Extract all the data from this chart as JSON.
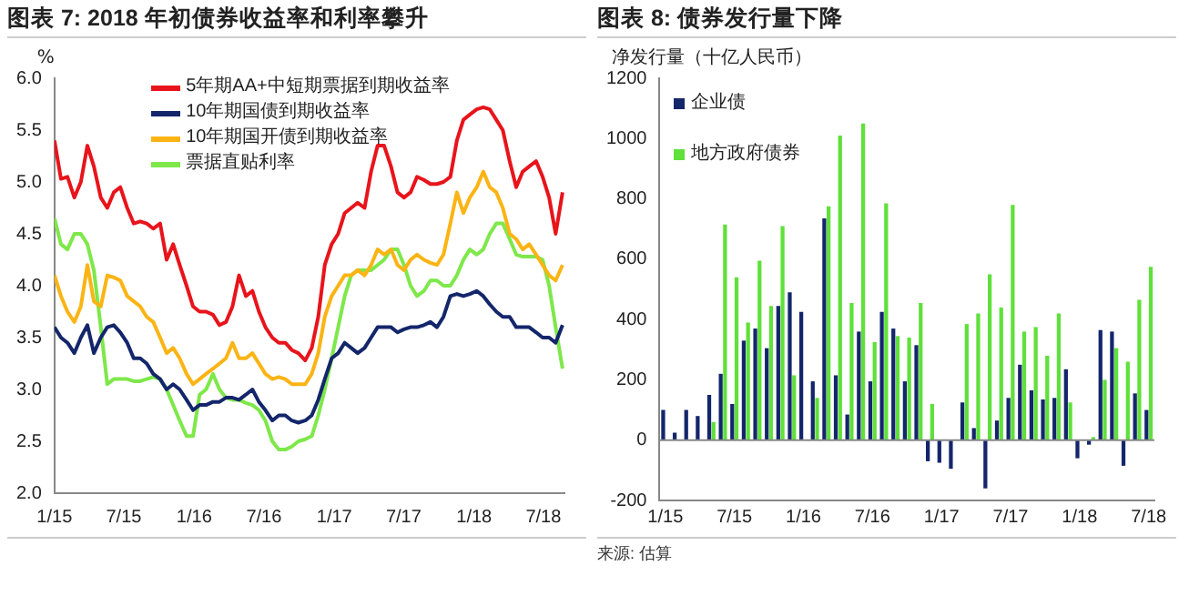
{
  "chart_data": [
    {
      "type": "line",
      "title": "图表 7: 2018 年初债券收益率和利率攀升",
      "ylabel": "%",
      "legend": "top right",
      "marker": "none",
      "line_style": "solid",
      "grid": false,
      "x": [
        "2015-01-01",
        "2015-01-18",
        "2015-02-04",
        "2015-02-22",
        "2015-03-11",
        "2015-03-28",
        "2015-04-14",
        "2015-05-02",
        "2015-05-19",
        "2015-06-05",
        "2015-06-22",
        "2015-07-10",
        "2015-07-27",
        "2015-08-13",
        "2015-08-30",
        "2015-09-16",
        "2015-10-04",
        "2015-10-21",
        "2015-11-07",
        "2015-11-24",
        "2015-12-12",
        "2015-12-29",
        "2016-01-15",
        "2016-02-01",
        "2016-02-19",
        "2016-03-07",
        "2016-03-24",
        "2016-04-10",
        "2016-04-27",
        "2016-05-15",
        "2016-06-01",
        "2016-06-18",
        "2016-07-05",
        "2016-07-23",
        "2016-08-09",
        "2016-08-26",
        "2016-09-12",
        "2016-09-29",
        "2016-10-17",
        "2016-11-03",
        "2016-11-20",
        "2016-12-07",
        "2016-12-25",
        "2017-01-11",
        "2017-01-28",
        "2017-02-14",
        "2017-03-03",
        "2017-03-21",
        "2017-04-07",
        "2017-04-24",
        "2017-05-11",
        "2017-05-29",
        "2017-06-15",
        "2017-07-02",
        "2017-07-19",
        "2017-08-05",
        "2017-08-23",
        "2017-09-09",
        "2017-09-26",
        "2017-10-13",
        "2017-10-31",
        "2017-11-17",
        "2017-12-04",
        "2017-12-21",
        "2018-01-08",
        "2018-01-25",
        "2018-02-11",
        "2018-02-28",
        "2018-03-17",
        "2018-04-04",
        "2018-04-21",
        "2018-05-08",
        "2018-05-25",
        "2018-06-12",
        "2018-06-29",
        "2018-07-16",
        "2018-08-02",
        "2018-08-20"
      ],
      "xlim": [
        "2015-01-01",
        "2018-08-25"
      ],
      "xticks": [
        {
          "value": "2015-01-01",
          "label": "1/15"
        },
        {
          "value": "2015-07-01",
          "label": "7/15"
        },
        {
          "value": "2016-01-01",
          "label": "1/16"
        },
        {
          "value": "2016-07-01",
          "label": "7/16"
        },
        {
          "value": "2017-01-01",
          "label": "1/17"
        },
        {
          "value": "2017-07-01",
          "label": "7/17"
        },
        {
          "value": "2018-01-01",
          "label": "1/18"
        },
        {
          "value": "2018-07-01",
          "label": "7/18"
        }
      ],
      "ylim": [
        2.0,
        6.0
      ],
      "yticks": [
        {
          "value": 2.0,
          "label": "2.0"
        },
        {
          "value": 2.5,
          "label": "2.5"
        },
        {
          "value": 3.0,
          "label": "3.0"
        },
        {
          "value": 3.5,
          "label": "3.5"
        },
        {
          "value": 4.0,
          "label": "4.0"
        },
        {
          "value": 4.5,
          "label": "4.5"
        },
        {
          "value": 5.0,
          "label": "5.0"
        },
        {
          "value": 5.5,
          "label": "5.5"
        },
        {
          "value": 6.0,
          "label": "6.0"
        }
      ],
      "series": [
        {
          "name": "5年期AA+中短期票据到期收益率",
          "color": "#e8141b",
          "values": [
            5.4,
            5.03,
            5.05,
            4.85,
            5.0,
            5.35,
            5.15,
            4.85,
            4.75,
            4.9,
            4.95,
            4.75,
            4.6,
            4.62,
            4.6,
            4.55,
            4.6,
            4.25,
            4.4,
            4.2,
            4.0,
            3.8,
            3.75,
            3.75,
            3.72,
            3.62,
            3.65,
            3.8,
            4.1,
            3.9,
            3.95,
            3.75,
            3.6,
            3.5,
            3.45,
            3.45,
            3.38,
            3.35,
            3.28,
            3.4,
            3.7,
            4.2,
            4.4,
            4.5,
            4.7,
            4.75,
            4.8,
            4.75,
            5.1,
            5.35,
            5.35,
            5.15,
            4.9,
            4.85,
            4.9,
            5.05,
            5.02,
            4.98,
            4.98,
            5.0,
            5.05,
            5.4,
            5.6,
            5.65,
            5.7,
            5.72,
            5.7,
            5.6,
            5.5,
            5.2,
            4.95,
            5.1,
            5.15,
            5.2,
            5.05,
            4.85,
            4.5,
            4.9
          ]
        },
        {
          "name": "10年期国债到期收益率",
          "color": "#14266b",
          "values": [
            3.6,
            3.5,
            3.45,
            3.35,
            3.5,
            3.62,
            3.35,
            3.5,
            3.6,
            3.62,
            3.55,
            3.45,
            3.3,
            3.3,
            3.25,
            3.15,
            3.1,
            3.0,
            3.05,
            3.0,
            2.9,
            2.8,
            2.85,
            2.85,
            2.88,
            2.88,
            2.92,
            2.92,
            2.9,
            2.95,
            3.0,
            2.88,
            2.8,
            2.7,
            2.75,
            2.75,
            2.7,
            2.68,
            2.7,
            2.75,
            2.9,
            3.1,
            3.3,
            3.35,
            3.45,
            3.4,
            3.35,
            3.4,
            3.5,
            3.6,
            3.6,
            3.6,
            3.55,
            3.58,
            3.6,
            3.6,
            3.62,
            3.65,
            3.6,
            3.7,
            3.9,
            3.92,
            3.9,
            3.92,
            3.95,
            3.9,
            3.82,
            3.75,
            3.7,
            3.7,
            3.6,
            3.6,
            3.6,
            3.55,
            3.5,
            3.5,
            3.45,
            3.62
          ]
        },
        {
          "name": "10年期国开债到期收益率",
          "color": "#fbb414",
          "values": [
            4.1,
            3.9,
            3.75,
            3.65,
            3.8,
            4.2,
            3.85,
            3.8,
            4.1,
            4.08,
            4.05,
            3.9,
            3.85,
            3.8,
            3.7,
            3.65,
            3.5,
            3.35,
            3.4,
            3.3,
            3.15,
            3.05,
            3.1,
            3.15,
            3.2,
            3.25,
            3.3,
            3.45,
            3.3,
            3.3,
            3.35,
            3.25,
            3.15,
            3.1,
            3.12,
            3.1,
            3.05,
            3.05,
            3.05,
            3.15,
            3.35,
            3.7,
            3.9,
            4.0,
            4.1,
            4.1,
            4.15,
            4.1,
            4.2,
            4.35,
            4.3,
            4.35,
            4.2,
            4.15,
            4.25,
            4.3,
            4.25,
            4.22,
            4.2,
            4.3,
            4.6,
            4.9,
            4.7,
            4.85,
            4.95,
            5.1,
            4.95,
            4.9,
            4.75,
            4.5,
            4.45,
            4.35,
            4.4,
            4.3,
            4.2,
            4.1,
            4.05,
            4.2
          ]
        },
        {
          "name": "票据直贴利率",
          "color": "#7ee84a",
          "values": [
            4.65,
            4.4,
            4.35,
            4.5,
            4.5,
            4.4,
            4.15,
            3.6,
            3.05,
            3.1,
            3.1,
            3.1,
            3.08,
            3.08,
            3.1,
            3.12,
            3.1,
            3.0,
            2.85,
            2.7,
            2.55,
            2.55,
            2.95,
            3.0,
            3.15,
            3.0,
            2.92,
            2.9,
            2.9,
            2.87,
            2.85,
            2.8,
            2.7,
            2.5,
            2.42,
            2.42,
            2.45,
            2.5,
            2.52,
            2.55,
            2.75,
            3.0,
            3.3,
            3.6,
            3.9,
            4.1,
            4.15,
            4.15,
            4.15,
            4.2,
            4.25,
            4.35,
            4.35,
            4.2,
            4.0,
            3.9,
            3.95,
            4.05,
            4.05,
            4.0,
            4.0,
            4.1,
            4.25,
            4.35,
            4.3,
            4.35,
            4.5,
            4.6,
            4.6,
            4.45,
            4.3,
            4.28,
            4.28,
            4.28,
            4.25,
            4.0,
            3.6,
            3.2
          ]
        }
      ]
    },
    {
      "type": "bar",
      "title": "图表 8: 债券发行量下降",
      "ylabel": "净发行量（十亿人民币）",
      "legend": "top left",
      "grid": false,
      "annotations": [
        "来源: 估算"
      ],
      "categories": [
        "1/15",
        null,
        null,
        null,
        null,
        null,
        "7/15",
        null,
        null,
        null,
        null,
        null,
        "1/16",
        null,
        null,
        null,
        null,
        null,
        "7/16",
        null,
        null,
        null,
        null,
        null,
        "1/17",
        null,
        null,
        null,
        null,
        null,
        "7/17",
        null,
        null,
        null,
        null,
        null,
        "1/18",
        null,
        null,
        null,
        null,
        null,
        "7/18"
      ],
      "ylim": [
        -200,
        1200
      ],
      "yticks": [
        -200,
        0,
        200,
        400,
        600,
        800,
        1000,
        1200
      ],
      "ref_lines": [
        {
          "axis": "y",
          "value": 0,
          "color": "#888888"
        }
      ],
      "series": [
        {
          "name": "企业债",
          "color": "#14266b",
          "values": [
            100,
            25,
            100,
            80,
            150,
            220,
            120,
            330,
            370,
            305,
            445,
            490,
            425,
            195,
            735,
            215,
            85,
            360,
            195,
            425,
            370,
            195,
            315,
            -70,
            -75,
            -95,
            125,
            40,
            -160,
            65,
            140,
            250,
            165,
            135,
            140,
            235,
            -60,
            -15,
            365,
            360,
            -85,
            155,
            100
          ]
        },
        {
          "name": "地方政府债券",
          "color": "#5fe03a",
          "values": [
            null,
            null,
            null,
            null,
            60,
            715,
            540,
            390,
            595,
            445,
            710,
            215,
            null,
            140,
            775,
            1010,
            455,
            1050,
            325,
            785,
            345,
            340,
            455,
            120,
            null,
            null,
            385,
            420,
            550,
            440,
            780,
            360,
            375,
            280,
            420,
            125,
            null,
            10,
            200,
            305,
            260,
            465,
            575
          ]
        }
      ]
    }
  ]
}
